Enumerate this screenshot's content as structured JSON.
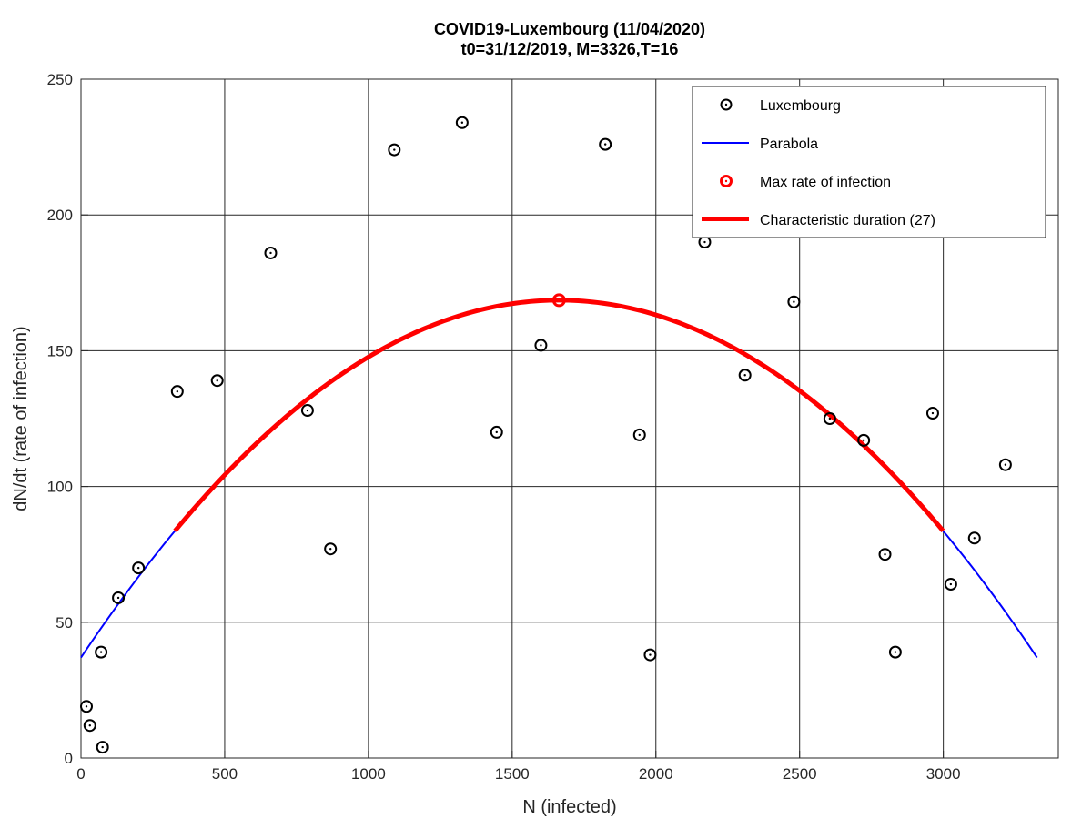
{
  "chart_data": {
    "type": "scatter",
    "title": "COVID19-Luxembourg (11/04/2020)",
    "subtitle": "t0=31/12/2019, M=3326,T=16",
    "xlabel": "N (infected)",
    "ylabel": "dN/dt (rate of infection)",
    "xlim": [
      0,
      3400
    ],
    "ylim": [
      0,
      250
    ],
    "xticks": [
      0,
      500,
      1000,
      1500,
      2000,
      2500,
      3000
    ],
    "yticks": [
      0,
      50,
      100,
      150,
      200,
      250
    ],
    "grid": true,
    "legend_position": "top-right",
    "series": [
      {
        "name": "Luxembourg",
        "kind": "markers",
        "color": "#000000",
        "points": [
          [
            19,
            19
          ],
          [
            31,
            12
          ],
          [
            70,
            39
          ],
          [
            75,
            4
          ],
          [
            130,
            59
          ],
          [
            200,
            70
          ],
          [
            335,
            135
          ],
          [
            474,
            139
          ],
          [
            660,
            186
          ],
          [
            788,
            128
          ],
          [
            868,
            77
          ],
          [
            1090,
            224
          ],
          [
            1326,
            234
          ],
          [
            1446,
            120
          ],
          [
            1600,
            152
          ],
          [
            1824,
            226
          ],
          [
            1943,
            119
          ],
          [
            1980,
            38
          ],
          [
            2170,
            190
          ],
          [
            2310,
            141
          ],
          [
            2480,
            168
          ],
          [
            2605,
            125
          ],
          [
            2723,
            117
          ],
          [
            2797,
            75
          ],
          [
            2833,
            39
          ],
          [
            2963,
            127
          ],
          [
            3026,
            64
          ],
          [
            3108,
            81
          ],
          [
            3216,
            108
          ]
        ]
      },
      {
        "name": "Parabola",
        "kind": "curve",
        "color": "#0000ff",
        "x_range": [
          0,
          3326
        ],
        "vertex": [
          1663,
          168.6
        ],
        "y_at_ends": 37
      },
      {
        "name": "Max rate of infection",
        "kind": "marker",
        "color": "#ff0000",
        "points": [
          [
            1663,
            168.6
          ]
        ]
      },
      {
        "name": "Characteristic duration (27)",
        "kind": "curve-segment",
        "color": "#ff0000",
        "x_range": [
          327,
          2999
        ]
      }
    ]
  }
}
